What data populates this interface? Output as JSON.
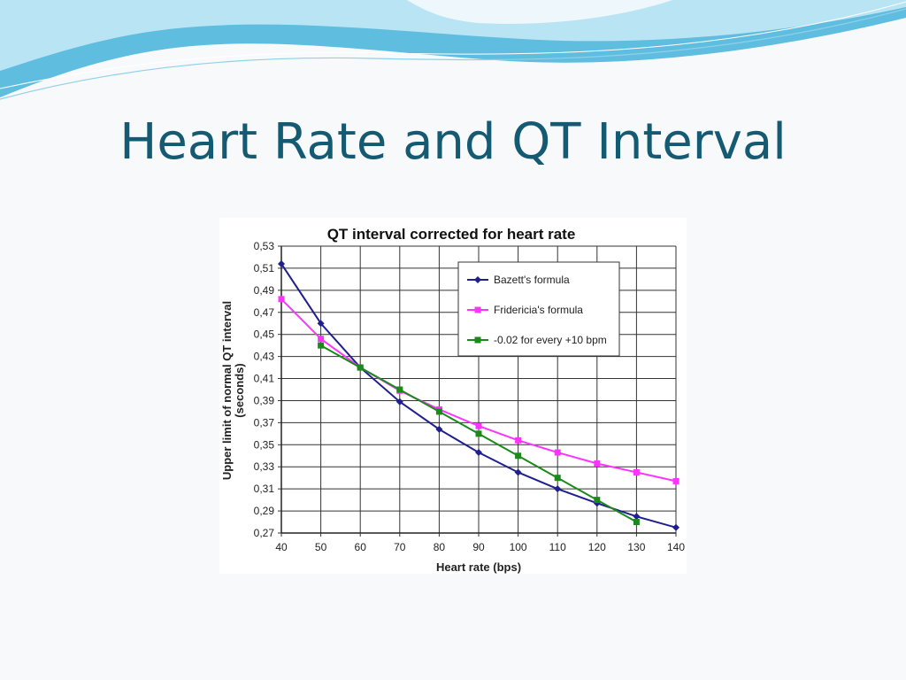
{
  "slide": {
    "title": "Heart Rate and QT Interval",
    "colors": {
      "title": "#145a73",
      "wave_dark": "#4fb0d6",
      "wave_light": "#a9dcef"
    }
  },
  "chart_data": {
    "type": "line",
    "title": "QT  interval corrected for heart rate",
    "xlabel": "Heart rate (bps)",
    "ylabel_line1": "Upper limit of normal QT interval",
    "ylabel_line2": "(seconds)",
    "xlim": [
      40,
      140
    ],
    "ylim": [
      0.27,
      0.53
    ],
    "x_ticks": [
      "40",
      "50",
      "60",
      "70",
      "80",
      "90",
      "100",
      "110",
      "120",
      "130",
      "140"
    ],
    "y_ticks": [
      "0,53",
      "0,51",
      "0,49",
      "0,47",
      "0,45",
      "0,43",
      "0,41",
      "0,39",
      "0,37",
      "0,35",
      "0,33",
      "0,31",
      "0,29",
      "0,27"
    ],
    "grid": true,
    "legend_position": "top-right",
    "series": [
      {
        "name": "Bazett's formula",
        "color": "#1f1f8f",
        "marker": "diamond",
        "x": [
          40,
          50,
          60,
          70,
          80,
          90,
          100,
          110,
          120,
          130,
          140
        ],
        "y": [
          0.514,
          0.46,
          0.42,
          0.389,
          0.364,
          0.343,
          0.325,
          0.31,
          0.297,
          0.285,
          0.275
        ]
      },
      {
        "name": "Fridericia's formula",
        "color": "#ff33ff",
        "marker": "square",
        "x": [
          40,
          50,
          60,
          70,
          80,
          90,
          100,
          110,
          120,
          130,
          140
        ],
        "y": [
          0.482,
          0.446,
          0.42,
          0.399,
          0.382,
          0.367,
          0.354,
          0.343,
          0.333,
          0.325,
          0.317
        ]
      },
      {
        "name": "-0.02 for every +10 bpm",
        "color": "#1a8a1a",
        "marker": "square",
        "x": [
          50,
          60,
          70,
          80,
          90,
          100,
          110,
          120,
          130
        ],
        "y": [
          0.44,
          0.42,
          0.4,
          0.38,
          0.36,
          0.34,
          0.32,
          0.3,
          0.28
        ]
      }
    ]
  }
}
